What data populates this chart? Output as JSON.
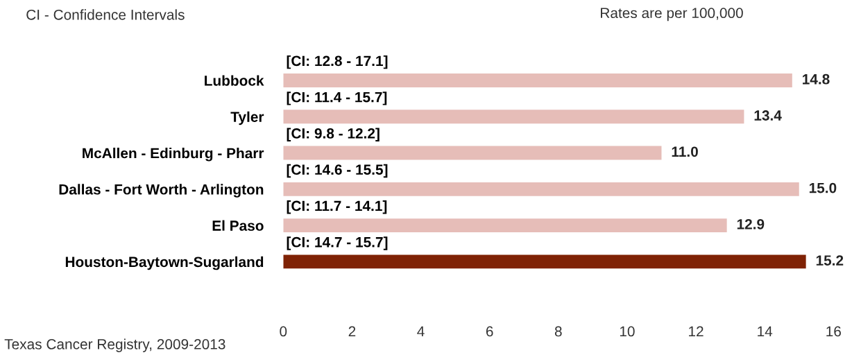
{
  "chart_data": {
    "type": "bar",
    "orientation": "horizontal",
    "categories": [
      "Lubbock",
      "Tyler",
      "McAllen - Edinburg - Pharr",
      "Dallas - Fort Worth - Arlington",
      "El Paso",
      "Houston-Baytown-Sugarland"
    ],
    "values": [
      14.8,
      13.4,
      11.0,
      15.0,
      12.9,
      15.2
    ],
    "value_labels": [
      "14.8",
      "13.4",
      "11.0",
      "15.0",
      "12.9",
      "15.2"
    ],
    "colors": [
      "#e6bdb8",
      "#e6bdb8",
      "#e6bdb8",
      "#e6bdb8",
      "#e6bdb8",
      "#7f2205"
    ],
    "xlim": [
      0,
      16
    ],
    "xticks": [
      0,
      2,
      4,
      6,
      8,
      10,
      12,
      14,
      16
    ],
    "grid": false,
    "legend": false,
    "annotations": [
      "[CI: 12.8 - 17.1]",
      "[CI: 11.4 - 15.7]",
      "[CI: 9.8 - 12.2]",
      "[CI: 14.6 - 15.5]",
      "[CI: 11.7 - 14.1]",
      "[CI: 14.7 - 15.7]",
      "CI - Confidence Intervals",
      "Rates are per 100,000",
      "Texas Cancer Registry, 2009-2013"
    ]
  }
}
